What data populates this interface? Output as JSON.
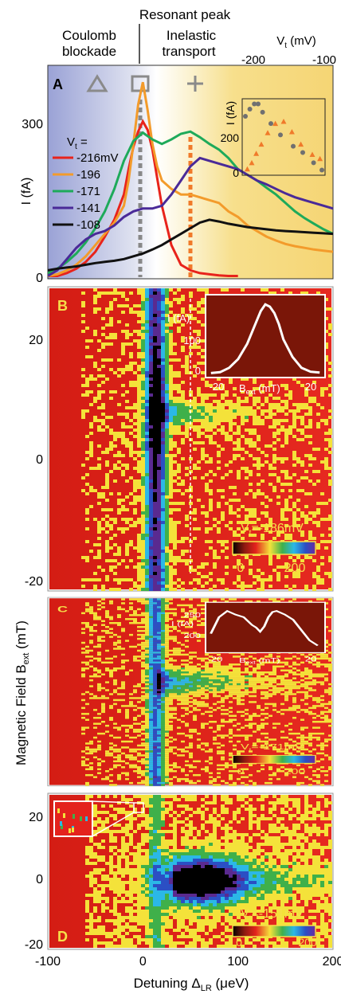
{
  "header": {
    "resonant": "Resonant peak",
    "coulomb_1": "Coulomb",
    "coulomb_2": "blockade",
    "inelastic_1": "Inelastic",
    "inelastic_2": "transport"
  },
  "colors": {
    "blockade_bg": "#aab0d8",
    "inelastic_bg": "#f7df8c",
    "heat_red": "#e4231d",
    "heat_yellow": "#f4e23a",
    "heat_green": "#3fb04a",
    "heat_cyan": "#2bb8e6",
    "heat_blue": "#2b4fc4",
    "heat_purple": "#5a2a90",
    "heat_black": "#000000",
    "marker_dashed_gray": "#888888",
    "marker_dashed_orange": "#f07a2a"
  },
  "chart_data": [
    {
      "panel": "A",
      "type": "line",
      "markers": [
        "triangle-icon",
        "square-icon",
        "plus-icon"
      ],
      "legend_title": "V",
      "legend_title_sub": "t",
      "legend_title_suffix": " =",
      "legend_position": "left",
      "ylabel": "I (fA)",
      "ylim": [
        0,
        380
      ],
      "xlim": [
        -100,
        200
      ],
      "y_ticks": [
        "0",
        "300"
      ],
      "series": [
        {
          "name": "-216mV",
          "color": "#e8231b",
          "x": [
            -100,
            -90,
            -80,
            -70,
            -60,
            -50,
            -40,
            -30,
            -20,
            -15,
            -10,
            -5,
            0,
            5,
            10,
            15,
            20,
            30,
            40,
            50,
            60,
            70,
            80,
            90,
            100
          ],
          "y": [
            5,
            5,
            10,
            18,
            30,
            48,
            75,
            105,
            150,
            195,
            235,
            262,
            280,
            265,
            230,
            180,
            130,
            60,
            25,
            15,
            10,
            8,
            6,
            5,
            5
          ]
        },
        {
          "name": "-196",
          "color": "#f39b2b",
          "x": [
            -100,
            -90,
            -80,
            -70,
            -60,
            -50,
            -40,
            -30,
            -20,
            -15,
            -10,
            -5,
            0,
            5,
            10,
            15,
            20,
            30,
            40,
            50,
            60,
            70,
            80,
            90,
            100,
            110,
            120,
            130,
            140,
            150,
            160,
            170,
            180,
            190,
            200
          ],
          "y": [
            5,
            8,
            15,
            25,
            40,
            60,
            80,
            100,
            130,
            175,
            240,
            310,
            350,
            300,
            240,
            200,
            175,
            160,
            150,
            150,
            145,
            140,
            135,
            120,
            110,
            95,
            85,
            75,
            68,
            62,
            58,
            55,
            52,
            50,
            48
          ]
        },
        {
          "name": "-171",
          "color": "#1eaa5a",
          "x": [
            -100,
            -90,
            -80,
            -70,
            -60,
            -50,
            -40,
            -30,
            -20,
            -10,
            0,
            10,
            20,
            30,
            40,
            50,
            60,
            70,
            80,
            90,
            100,
            110,
            120,
            130,
            140,
            150,
            160,
            170,
            180,
            190,
            200
          ],
          "y": [
            10,
            18,
            30,
            45,
            65,
            90,
            120,
            160,
            210,
            245,
            260,
            248,
            240,
            248,
            258,
            262,
            252,
            240,
            230,
            215,
            195,
            185,
            175,
            162,
            150,
            135,
            120,
            108,
            98,
            88,
            80
          ]
        },
        {
          "name": "-141",
          "color": "#4a2a98",
          "x": [
            -100,
            -90,
            -80,
            -70,
            -60,
            -50,
            -40,
            -30,
            -20,
            -10,
            0,
            10,
            20,
            30,
            40,
            50,
            60,
            70,
            80,
            90,
            100,
            110,
            120,
            130,
            140,
            150,
            160,
            170,
            180,
            190,
            200
          ],
          "y": [
            5,
            15,
            35,
            55,
            70,
            80,
            85,
            95,
            110,
            120,
            125,
            125,
            130,
            150,
            175,
            200,
            215,
            210,
            205,
            200,
            195,
            185,
            175,
            168,
            160,
            152,
            145,
            140,
            135,
            130,
            125
          ]
        },
        {
          "name": "-108",
          "color": "#111111",
          "x": [
            -100,
            -90,
            -80,
            -70,
            -60,
            -50,
            -40,
            -30,
            -20,
            -10,
            0,
            10,
            20,
            30,
            40,
            50,
            60,
            70,
            80,
            90,
            100,
            110,
            120,
            130,
            140,
            150,
            160,
            170,
            180,
            190,
            200
          ],
          "y": [
            15,
            18,
            20,
            22,
            25,
            28,
            30,
            32,
            35,
            40,
            45,
            52,
            60,
            70,
            80,
            90,
            100,
            105,
            102,
            98,
            95,
            92,
            90,
            88,
            86,
            85,
            84,
            83,
            82,
            81,
            80
          ]
        }
      ],
      "inset": {
        "type": "scatter",
        "xlabel": "V",
        "xlabel_sub": "t",
        "xlabel_suffix": " (mV)",
        "ylabel": "I (fA)",
        "xlim": [
          -230,
          -100
        ],
        "ylim": [
          0,
          370
        ],
        "x_ticks": [
          "-200",
          "-100"
        ],
        "y_ticks": [
          "0",
          "200"
        ],
        "series": [
          {
            "name": "gray",
            "color": "#707070",
            "marker": "circle",
            "x": [
              -225,
              -218,
              -211,
              -205,
              -198,
              -185,
              -170,
              -150,
              -135,
              -118,
              -105
            ],
            "y": [
              285,
              320,
              345,
              345,
              305,
              250,
              195,
              140,
              110,
              60,
              25
            ]
          },
          {
            "name": "orange",
            "color": "#f07a2a",
            "marker": "triangle",
            "x": [
              -222,
              -215,
              -208,
              -200,
              -190,
              -178,
              -165,
              -152,
              -138,
              -120,
              -108
            ],
            "y": [
              30,
              60,
              105,
              150,
              205,
              250,
              260,
              210,
              150,
              100,
              80
            ]
          }
        ]
      }
    },
    {
      "panel": "B",
      "type": "heatmap",
      "label": "V",
      "label_sub": "t",
      "label_suffix": "=-186mV",
      "colorbar_ticks": [
        "0",
        "200"
      ],
      "y_ticks": [
        "20",
        "0",
        "-20"
      ],
      "ylim": [
        -21,
        27
      ],
      "xlim": [
        -100,
        200
      ],
      "dashed_line_x": 52,
      "inset": {
        "type": "line",
        "ylabel": "I (fA)",
        "xlabel": "B",
        "xlabel_sub": "ext",
        "xlabel_suffix": " (mT)",
        "x_ticks": [
          "-20",
          "0",
          "20"
        ],
        "y_ticks": [
          "0",
          "100"
        ],
        "xlim": [
          -25,
          25
        ],
        "ylim": [
          0,
          175
        ],
        "x": [
          -24,
          -20,
          -16,
          -12,
          -8,
          -4,
          -2,
          0,
          2,
          4,
          6,
          8,
          12,
          16,
          20,
          24
        ],
        "y": [
          3,
          5,
          15,
          35,
          70,
          120,
          145,
          160,
          155,
          140,
          115,
          80,
          40,
          15,
          6,
          4
        ]
      }
    },
    {
      "panel": "C",
      "type": "heatmap",
      "label": "V",
      "label_sub": "t",
      "label_suffix": "=-171mV",
      "colorbar_ticks": [
        "0",
        "200"
      ],
      "ylabel": "Magnetic Field B",
      "ylabel_sub": "ext",
      "ylabel_suffix": " (mT)",
      "xlim": [
        -100,
        200
      ],
      "inset": {
        "type": "line",
        "ylabel": "I (fA)",
        "xlabel": "B",
        "xlabel_sub": "ext",
        "xlabel_suffix": " (mT)",
        "x_ticks": [
          "-20",
          "0",
          "20"
        ],
        "y_ticks": [
          "200",
          "250"
        ],
        "xlim": [
          -25,
          30
        ],
        "ylim": [
          185,
          275
        ],
        "x": [
          -24,
          -20,
          -16,
          -12,
          -8,
          -4,
          -2,
          0,
          2,
          4,
          6,
          8,
          12,
          16,
          20,
          24,
          28
        ],
        "y": [
          218,
          250,
          262,
          255,
          250,
          235,
          230,
          222,
          232,
          250,
          260,
          262,
          255,
          245,
          225,
          205,
          195
        ]
      }
    },
    {
      "panel": "D",
      "type": "heatmap",
      "label": "V",
      "label_sub": "t",
      "label_suffix": "=-151mV",
      "colorbar_ticks": [
        "0",
        "200"
      ],
      "y_ticks": [
        "20",
        "0",
        "-20"
      ],
      "x_ticks": [
        "-100",
        "0",
        "100",
        "200"
      ],
      "xlabel": "Detuning Δ",
      "xlabel_sub": "LR",
      "xlabel_suffix": " (μeV)",
      "xlim": [
        -100,
        200
      ],
      "ylim": [
        -21,
        27
      ]
    }
  ]
}
